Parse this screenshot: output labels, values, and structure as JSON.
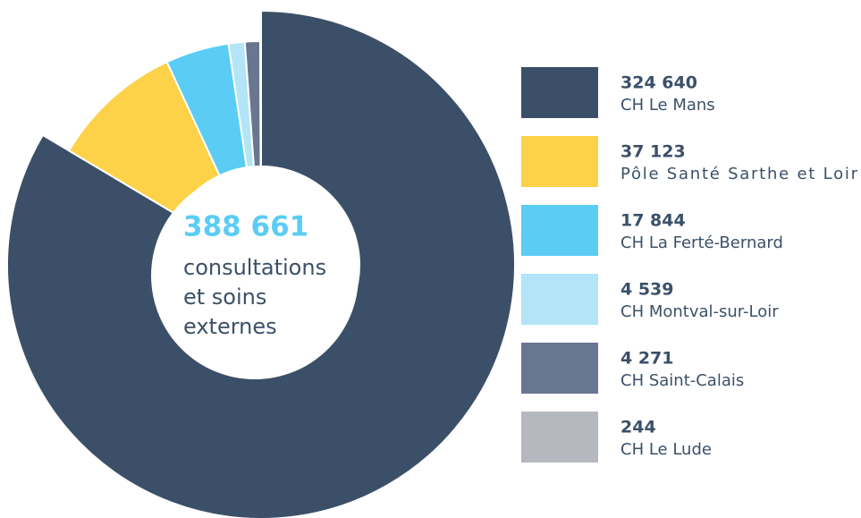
{
  "chart_data": {
    "type": "pie",
    "donut": true,
    "categories": [
      "CH Le Mans",
      "Pôle Santé Sarthe et Loir",
      "CH La Ferté-Bernard",
      "CH Montval-sur-Loir",
      "CH Saint-Calais",
      "CH Le Lude"
    ],
    "values": [
      324640,
      37123,
      17844,
      4539,
      4271,
      244
    ],
    "value_labels": [
      "324 640",
      "37 123",
      "17 844",
      "4 539",
      "4 271",
      "244"
    ],
    "colors": [
      "#3b5068",
      "#fdd249",
      "#5bcdf5",
      "#b3e4f8",
      "#687690",
      "#b5b9bf"
    ],
    "center_label": "388 661",
    "center_text": [
      "consultations",
      "et soins",
      "externes"
    ]
  }
}
